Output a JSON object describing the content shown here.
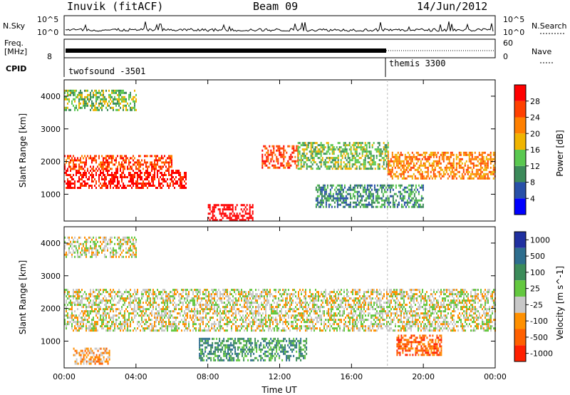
{
  "header": {
    "station": "Inuvik (fitACF)",
    "beam": "Beam 09",
    "date": "14/Jun/2012"
  },
  "summary_panel": {
    "nsky_label": "N.Sky",
    "nsky_ticks": [
      "10^5",
      "10^0"
    ],
    "nsearch_label": "N.Search",
    "nsearch_ticks": [
      "10^5",
      "10^0"
    ],
    "freq_label": "Freq.",
    "freq_unit": "[MHz]",
    "freq_ticks": [
      "8"
    ],
    "nave_label": "Nave",
    "nave_ticks": [
      "60",
      "0"
    ],
    "cpid_label": "CPID",
    "cpid_segments": [
      {
        "name": "twofsound -3501",
        "start": "00:00",
        "end": "18:00"
      },
      {
        "name": "themis 3300",
        "start": "18:00",
        "end": "00:00"
      }
    ]
  },
  "chart_data": [
    {
      "type": "heatmap",
      "parameter": "Power",
      "ylabel": "Slant Range [km]",
      "ylim": [
        180,
        4500
      ],
      "yticks": [
        1000,
        2000,
        3000,
        4000
      ],
      "xlim": [
        "00:00",
        "24:00"
      ],
      "xticks": [
        "00:00",
        "04:00",
        "08:00",
        "12:00",
        "16:00",
        "20:00",
        "00:00"
      ],
      "colorbar": {
        "label": "Power [dB]",
        "ticks": [
          4,
          8,
          12,
          16,
          20,
          24,
          28
        ],
        "colors": [
          "#0000ff",
          "#2850a8",
          "#3c8a5a",
          "#5ac850",
          "#f0b400",
          "#ff8000",
          "#ff4000",
          "#ff0000"
        ]
      },
      "regions": [
        {
          "t0": 0.0,
          "t1": 6.8,
          "r0": 1200,
          "r1": 1750,
          "level": 7
        },
        {
          "t0": 0.0,
          "t1": 6.0,
          "r0": 1750,
          "r1": 2200,
          "level": 6
        },
        {
          "t0": 8.0,
          "t1": 10.5,
          "r0": 200,
          "r1": 700,
          "level": 8
        },
        {
          "t0": 11.0,
          "t1": 13.0,
          "r0": 1800,
          "r1": 2500,
          "level": 6
        },
        {
          "t0": 13.0,
          "t1": 18.0,
          "r0": 1800,
          "r1": 2600,
          "level": 3
        },
        {
          "t0": 18.0,
          "t1": 24.0,
          "r0": 1500,
          "r1": 2300,
          "level": 5
        },
        {
          "t0": 0.0,
          "t1": 4.0,
          "r0": 3600,
          "r1": 4200,
          "level": 3
        },
        {
          "t0": 14.0,
          "t1": 20.0,
          "r0": 600,
          "r1": 1300,
          "level": 2
        }
      ]
    },
    {
      "type": "heatmap",
      "parameter": "Velocity",
      "ylabel": "Slant Range [km]",
      "xlabel": "Time UT",
      "ylim": [
        180,
        4500
      ],
      "yticks": [
        1000,
        2000,
        3000,
        4000
      ],
      "xlim": [
        "00:00",
        "24:00"
      ],
      "xticks": [
        "00:00",
        "04:00",
        "08:00",
        "12:00",
        "16:00",
        "20:00",
        "00:00"
      ],
      "colorbar": {
        "label": "Velocity [m s^-1]",
        "ticks": [
          1000,
          500,
          100,
          25,
          -25,
          -100,
          -500,
          -1000
        ],
        "colors": [
          "#2030a0",
          "#2e6e8e",
          "#3c8c5a",
          "#64c840",
          "#c8c8c8",
          "#ff9000",
          "#ff6000",
          "#ff2000"
        ]
      },
      "regions": [
        {
          "t0": 0.0,
          "t1": 24.0,
          "r0": 1300,
          "r1": 2600,
          "level": 4
        },
        {
          "t0": 7.5,
          "t1": 13.5,
          "r0": 400,
          "r1": 1100,
          "level": 2
        },
        {
          "t0": 18.5,
          "t1": 21.0,
          "r0": 600,
          "r1": 1200,
          "level": 6
        },
        {
          "t0": 0.5,
          "t1": 2.5,
          "r0": 300,
          "r1": 800,
          "level": 5
        },
        {
          "t0": 0.0,
          "t1": 4.0,
          "r0": 3600,
          "r1": 4200,
          "level": 4
        }
      ]
    }
  ]
}
